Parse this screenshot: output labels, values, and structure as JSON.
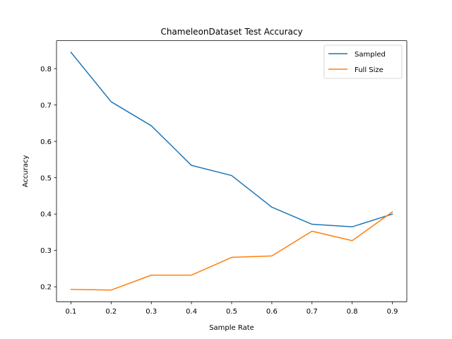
{
  "chart_data": {
    "type": "line",
    "title": "ChameleonDataset Test Accuracy",
    "xlabel": "Sample Rate",
    "ylabel": "Accuracy",
    "x": [
      0.1,
      0.2,
      0.3,
      0.4,
      0.5,
      0.6,
      0.7,
      0.8,
      0.9
    ],
    "xlim": [
      0.064,
      0.936
    ],
    "ylim": [
      0.159,
      0.877
    ],
    "xticks": [
      "0.1",
      "0.2",
      "0.3",
      "0.4",
      "0.5",
      "0.6",
      "0.7",
      "0.8",
      "0.9"
    ],
    "yticks": [
      "0.2",
      "0.3",
      "0.4",
      "0.5",
      "0.6",
      "0.7",
      "0.8"
    ],
    "grid": false,
    "legend_position": "top-right",
    "series": [
      {
        "name": "Sampled",
        "color": "#1f77b4",
        "values": [
          0.845,
          0.709,
          0.643,
          0.534,
          0.506,
          0.419,
          0.372,
          0.365,
          0.4
        ]
      },
      {
        "name": "Full Size",
        "color": "#ff7f0e",
        "values": [
          0.193,
          0.191,
          0.232,
          0.232,
          0.281,
          0.285,
          0.353,
          0.327,
          0.406
        ]
      }
    ]
  }
}
